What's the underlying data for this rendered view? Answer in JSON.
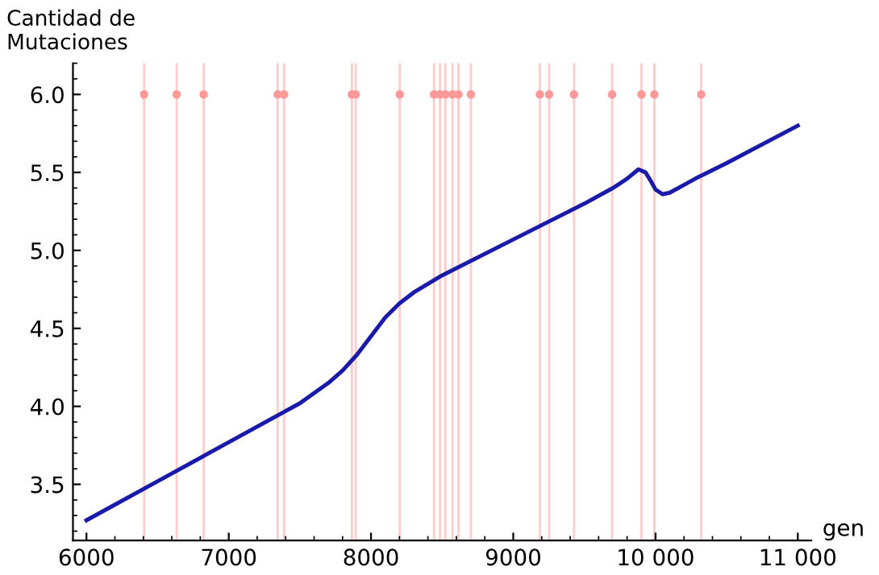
{
  "chart_data": {
    "type": "line",
    "ylabel": "Cantidad de\nMutaciones",
    "xlabel": "gen",
    "x": [
      6000,
      6500,
      7000,
      7500,
      7700,
      7800,
      7900,
      8000,
      8100,
      8200,
      8300,
      8500,
      9000,
      9500,
      9700,
      9800,
      9880,
      9930,
      9970,
      10000,
      10050,
      10100,
      10200,
      10300,
      10500,
      11000
    ],
    "series": [
      {
        "color": "#1a1aaa",
        "values": [
          3.27,
          3.52,
          3.77,
          4.02,
          4.15,
          4.23,
          4.33,
          4.45,
          4.57,
          4.66,
          4.73,
          4.84,
          5.07,
          5.3,
          5.4,
          5.46,
          5.52,
          5.5,
          5.44,
          5.39,
          5.36,
          5.37,
          5.42,
          5.47,
          5.56,
          5.8
        ]
      },
      {
        "type": "scatter",
        "color": "#ff9999",
        "marker": "circle",
        "x": [
          6405,
          6634,
          6824,
          7344,
          7389,
          7866,
          7893,
          8202,
          8443,
          8485,
          8523,
          8573,
          8615,
          8702,
          9187,
          9252,
          9427,
          9695,
          9901,
          9992,
          10321
        ],
        "values": [
          6.0,
          6.0,
          6.0,
          6.0,
          6.0,
          6.0,
          6.0,
          6.0,
          6.0,
          6.0,
          6.0,
          6.0,
          6.0,
          6.0,
          6.0,
          6.0,
          6.0,
          6.0,
          6.0,
          6.0,
          6.0
        ]
      }
    ],
    "ref_lines": [
      {
        "axis": "x",
        "value": 6405,
        "color": "#ffcccc"
      },
      {
        "axis": "x",
        "value": 6634,
        "color": "#ffcccc"
      },
      {
        "axis": "x",
        "value": 6824,
        "color": "#ffcccc"
      },
      {
        "axis": "x",
        "value": 7344,
        "color": "#ffcccc"
      },
      {
        "axis": "x",
        "value": 7389,
        "color": "#ffcccc"
      },
      {
        "axis": "x",
        "value": 7866,
        "color": "#ffcccc"
      },
      {
        "axis": "x",
        "value": 7893,
        "color": "#ffcccc"
      },
      {
        "axis": "x",
        "value": 8202,
        "color": "#ffcccc"
      },
      {
        "axis": "x",
        "value": 8443,
        "color": "#ffcccc"
      },
      {
        "axis": "x",
        "value": 8485,
        "color": "#ffcccc"
      },
      {
        "axis": "x",
        "value": 8523,
        "color": "#ffcccc"
      },
      {
        "axis": "x",
        "value": 8573,
        "color": "#ffcccc"
      },
      {
        "axis": "x",
        "value": 8615,
        "color": "#ffcccc"
      },
      {
        "axis": "x",
        "value": 8702,
        "color": "#ffcccc"
      },
      {
        "axis": "x",
        "value": 9187,
        "color": "#ffcccc"
      },
      {
        "axis": "x",
        "value": 9252,
        "color": "#ffcccc"
      },
      {
        "axis": "x",
        "value": 9427,
        "color": "#ffcccc"
      },
      {
        "axis": "x",
        "value": 9695,
        "color": "#ffcccc"
      },
      {
        "axis": "x",
        "value": 9901,
        "color": "#ffcccc"
      },
      {
        "axis": "x",
        "value": 9992,
        "color": "#ffcccc"
      },
      {
        "axis": "x",
        "value": 10321,
        "color": "#ffcccc"
      }
    ],
    "xlim": [
      5905,
      11095
    ],
    "ylim": [
      3.14,
      6.2
    ],
    "xticks": [
      6000,
      7000,
      8000,
      9000,
      {
        "value": 10000,
        "label": "10 000"
      },
      {
        "value": 11000,
        "label": "11 000"
      }
    ],
    "yticks": [
      3.5,
      {
        "value": 4.0,
        "label": "4.0"
      },
      4.5,
      {
        "value": 5.0,
        "label": "5.0"
      },
      5.5,
      {
        "value": 6.0,
        "label": "6.0"
      }
    ],
    "grid": false,
    "legend": false
  }
}
